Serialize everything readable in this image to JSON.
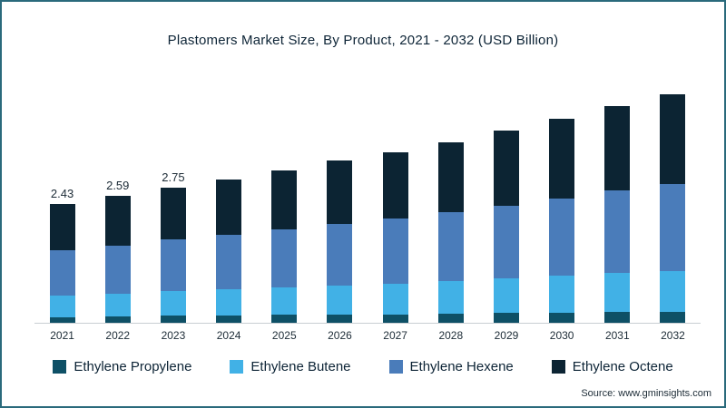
{
  "title": "Plastomers Market Size, By Product, 2021 - 2032 (USD Billion)",
  "source": "Source: www.gminsights.com",
  "colors": {
    "frame": "#2a6a7c",
    "axis_line": "#c9ced3",
    "text": "#0d2436"
  },
  "chart_data": {
    "type": "bar",
    "stacked": true,
    "title": "Plastomers Market Size, By Product, 2021 - 2032 (USD Billion)",
    "xlabel": "",
    "ylabel": "USD Billion",
    "ylim": [
      0,
      5
    ],
    "grid": false,
    "legend_position": "bottom",
    "categories": [
      "2021",
      "2022",
      "2023",
      "2024",
      "2025",
      "2026",
      "2027",
      "2028",
      "2029",
      "2030",
      "2031",
      "2032"
    ],
    "series": [
      {
        "name": "Ethylene Propylene",
        "color": "#0e5066",
        "values": [
          0.12,
          0.13,
          0.14,
          0.15,
          0.16,
          0.16,
          0.17,
          0.19,
          0.2,
          0.21,
          0.22,
          0.23
        ]
      },
      {
        "name": "Ethylene Butene",
        "color": "#41b1e6",
        "values": [
          0.44,
          0.47,
          0.5,
          0.53,
          0.56,
          0.59,
          0.63,
          0.67,
          0.71,
          0.75,
          0.8,
          0.84
        ]
      },
      {
        "name": "Ethylene Hexene",
        "color": "#4a7cba",
        "values": [
          0.92,
          0.98,
          1.05,
          1.11,
          1.18,
          1.25,
          1.33,
          1.41,
          1.49,
          1.58,
          1.68,
          1.78
        ]
      },
      {
        "name": "Ethylene Octene",
        "color": "#0c2433",
        "values": [
          0.95,
          1.01,
          1.06,
          1.13,
          1.2,
          1.29,
          1.36,
          1.43,
          1.53,
          1.63,
          1.72,
          1.84
        ]
      }
    ],
    "totals": [
      2.43,
      2.59,
      2.75,
      2.92,
      3.1,
      3.29,
      3.49,
      3.7,
      3.93,
      4.17,
      4.42,
      4.69
    ],
    "bar_labels": [
      "2.43",
      "2.59",
      "2.75",
      "",
      "",
      "",
      "",
      "",
      "",
      "",
      "",
      ""
    ]
  }
}
